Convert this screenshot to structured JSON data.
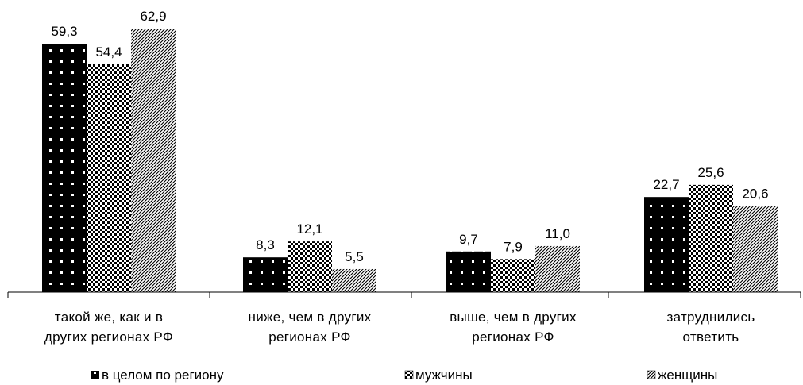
{
  "chart_data": {
    "type": "bar",
    "categories": [
      [
        "такой же, как и в",
        "других регионах РФ"
      ],
      [
        "ниже, чем в других",
        "регионах РФ"
      ],
      [
        "выше, чем в других",
        "регионах РФ"
      ],
      [
        "затруднились",
        "ответить"
      ]
    ],
    "series": [
      {
        "name": "в целом по региону",
        "values": [
          59.3,
          8.3,
          9.7,
          22.7
        ],
        "labels": [
          "59,3",
          "8,3",
          "9,7",
          "22,7"
        ],
        "pattern": "dotted-black"
      },
      {
        "name": "мужчины",
        "values": [
          54.4,
          12.1,
          7.9,
          25.6
        ],
        "labels": [
          "54,4",
          "12,1",
          "7,9",
          "25,6"
        ],
        "pattern": "checkerboard"
      },
      {
        "name": "женщины",
        "values": [
          62.9,
          5.5,
          11.0,
          20.6
        ],
        "labels": [
          "62,9",
          "5,5",
          "11,0",
          "20,6"
        ],
        "pattern": "diagonal-hatch"
      }
    ],
    "ylim": [
      0,
      68
    ],
    "grid": false,
    "legend_position": "bottom",
    "colors": {
      "ink": "#000000",
      "background": "#ffffff"
    }
  }
}
